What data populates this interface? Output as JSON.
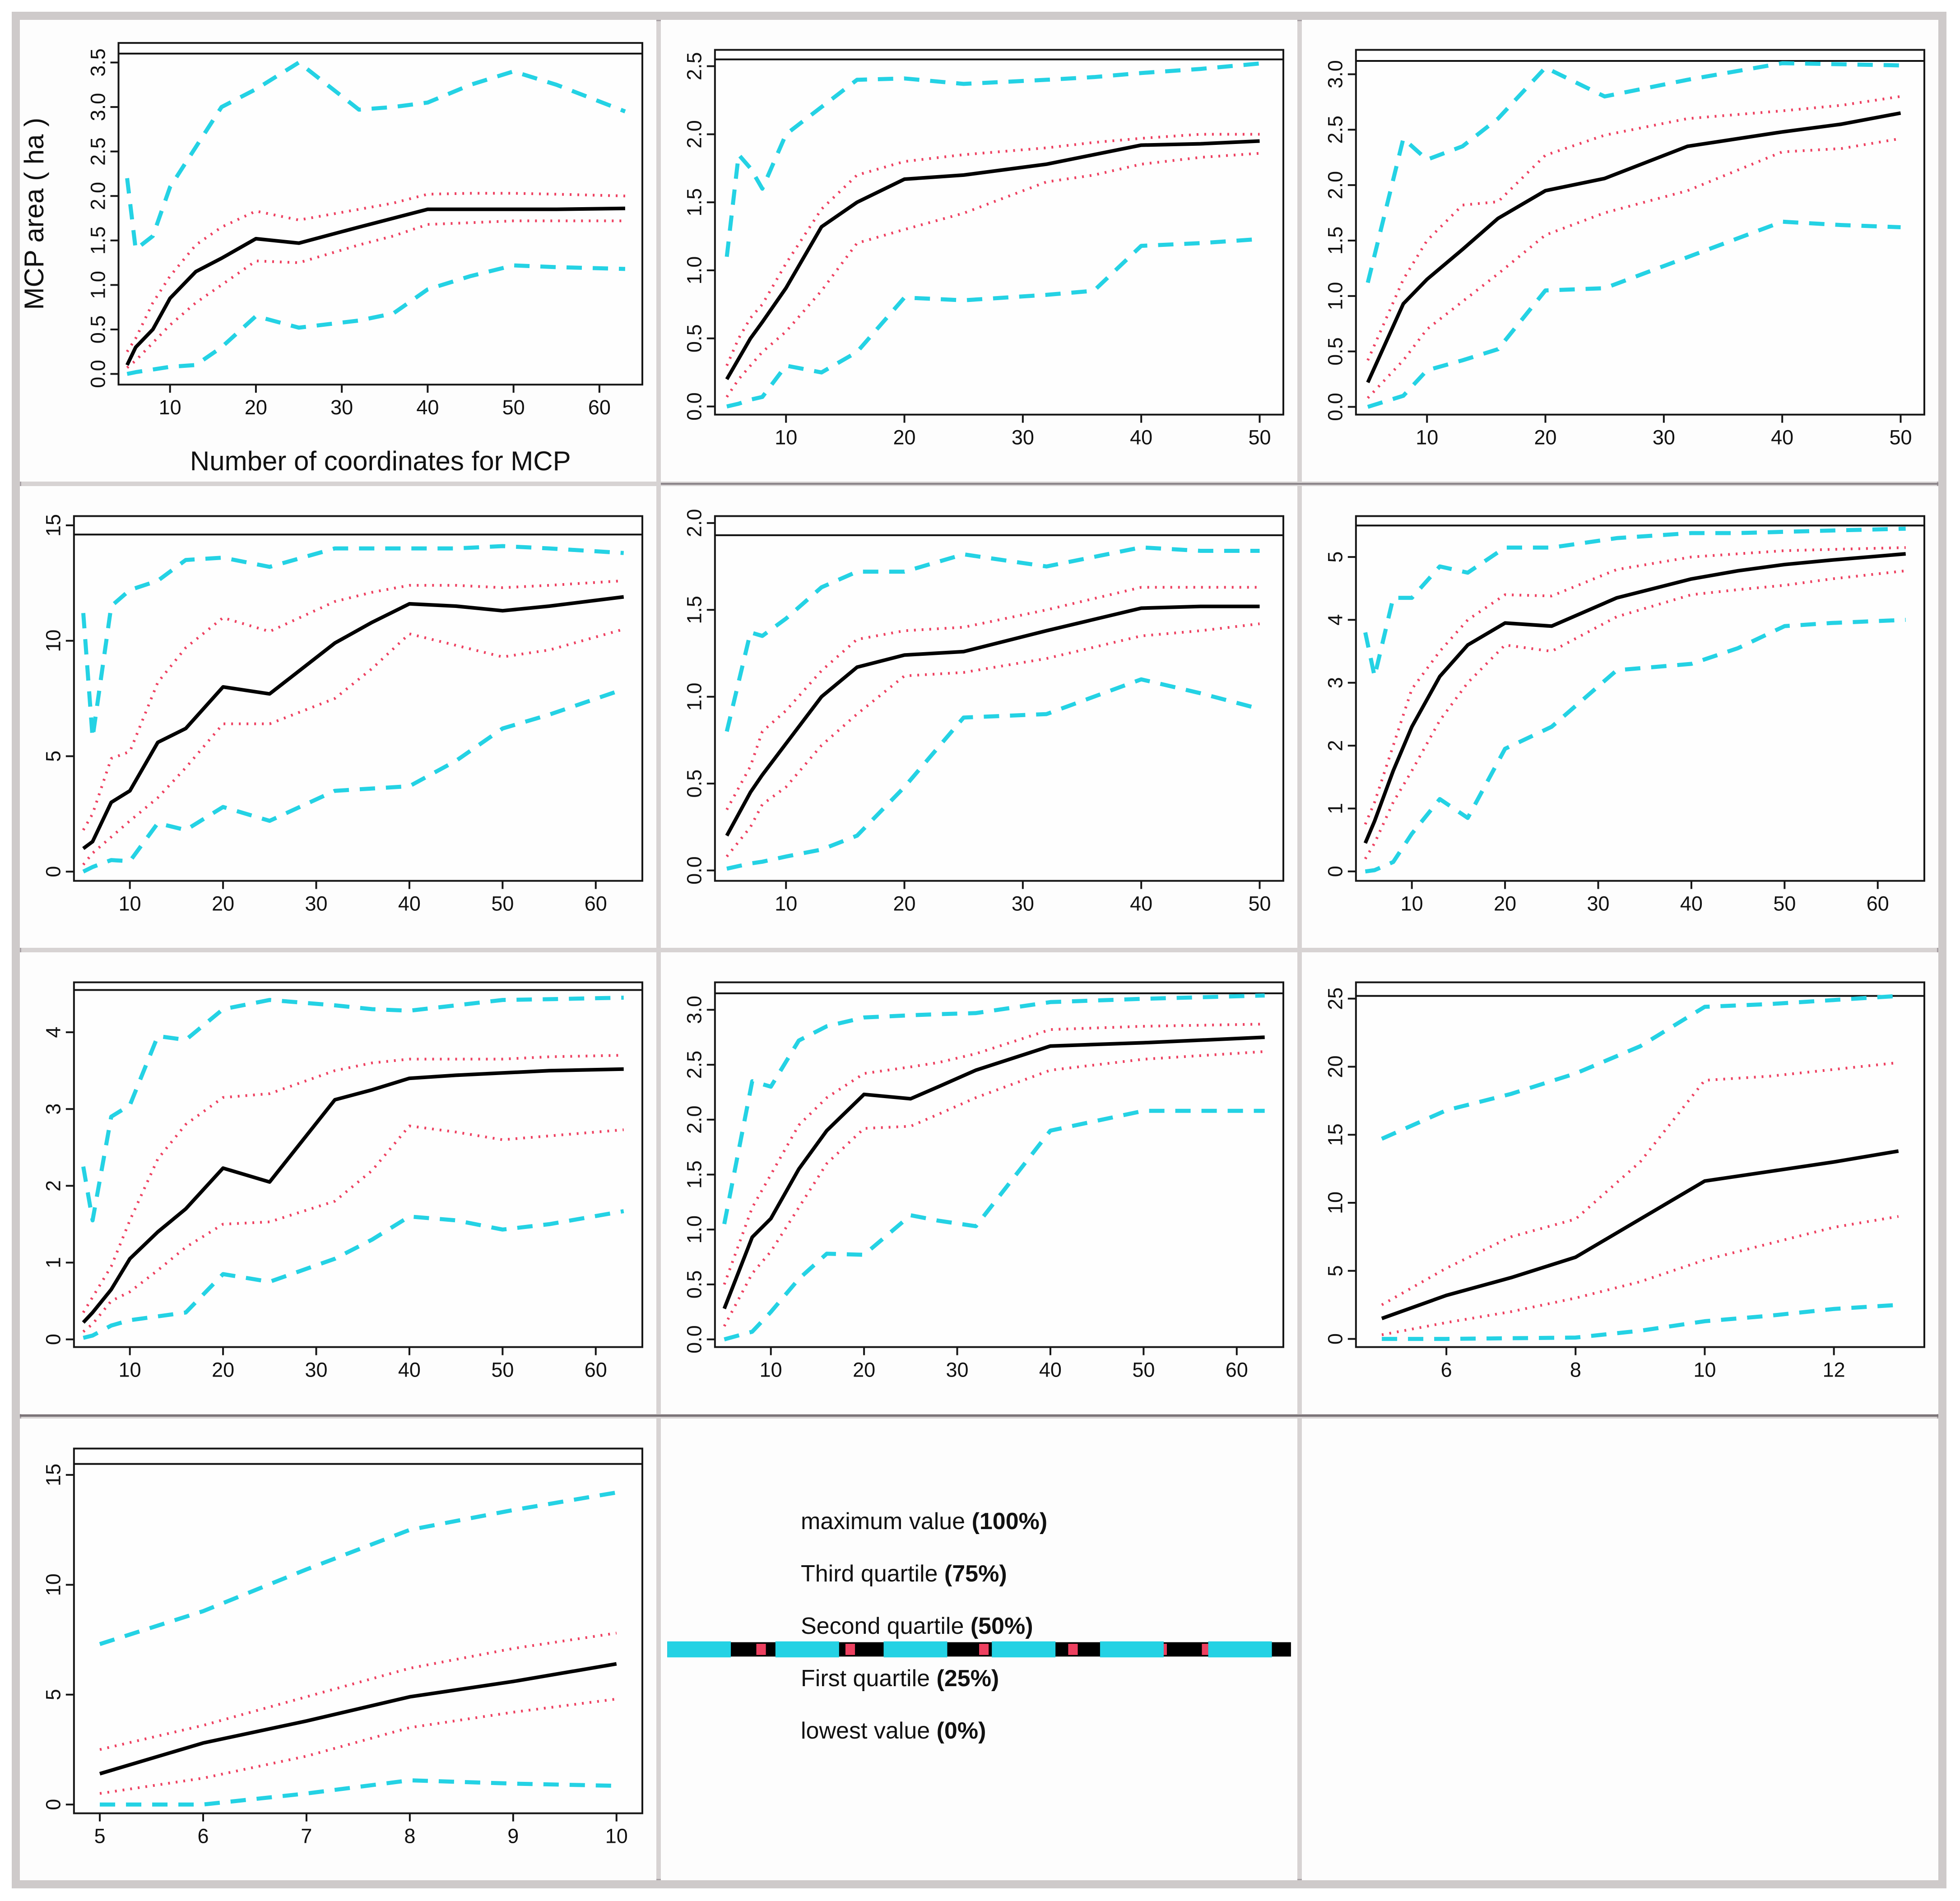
{
  "page": {
    "background": "#ffffff",
    "frame_color": "#cecaca",
    "separator_color": "#d7d3d3",
    "dark_separator_color": "#7b7478"
  },
  "colors": {
    "max": "#24d2e4",
    "q3": "#ee4060",
    "q2": "#000000",
    "q1": "#ee4060",
    "min": "#24d2e4",
    "reference": "#111111",
    "text": "#111111"
  },
  "legend": {
    "items": [
      {
        "key": "max",
        "label": "maximum value",
        "pct": "(100%)"
      },
      {
        "key": "q3",
        "label": "Third quartile",
        "pct": "(75%)"
      },
      {
        "key": "q2",
        "label": "Second quartile",
        "pct": "(50%)"
      },
      {
        "key": "q1",
        "label": "First quartile",
        "pct": "(25%)"
      },
      {
        "key": "min",
        "label": "lowest value",
        "pct": "(0%)"
      }
    ]
  },
  "chart_data": [
    {
      "type": "line",
      "position": "row1-col1",
      "ylabel": "MCP area ( ha )",
      "xlabel": "Number of coordinates for MCP",
      "xlim": [
        4,
        65
      ],
      "ylim": [
        -0.12,
        3.72
      ],
      "hline": 3.6,
      "xticks": [
        10,
        20,
        30,
        40,
        50,
        60
      ],
      "xtick_labels": [
        "10",
        "20",
        "30",
        "40",
        "50",
        "60"
      ],
      "yticks": [
        0.0,
        0.5,
        1.0,
        1.5,
        2.0,
        2.5,
        3.0,
        3.5
      ],
      "ytick_labels": [
        "0.0",
        "0.5",
        "1.0",
        "1.5",
        "2.0",
        "2.5",
        "3.0",
        "3.5"
      ],
      "x": [
        5,
        6,
        8,
        10,
        13,
        16,
        20,
        25,
        32,
        36,
        40,
        45,
        50,
        55,
        63
      ],
      "series": {
        "max": [
          2.2,
          1.4,
          1.55,
          2.1,
          2.55,
          3.0,
          3.2,
          3.5,
          2.97,
          3.0,
          3.05,
          3.25,
          3.4,
          3.25,
          2.95
        ],
        "q3": [
          0.25,
          0.4,
          0.8,
          1.1,
          1.45,
          1.65,
          1.83,
          1.73,
          1.85,
          1.92,
          2.02,
          2.03,
          2.03,
          2.02,
          2.0
        ],
        "q2": [
          0.1,
          0.3,
          0.5,
          0.85,
          1.15,
          1.3,
          1.52,
          1.47,
          1.65,
          1.75,
          1.85,
          1.85,
          1.85,
          1.85,
          1.86
        ],
        "q1": [
          0.07,
          0.15,
          0.35,
          0.55,
          0.8,
          1.0,
          1.27,
          1.25,
          1.45,
          1.55,
          1.68,
          1.7,
          1.72,
          1.72,
          1.72
        ],
        "min": [
          0.0,
          0.02,
          0.05,
          0.08,
          0.1,
          0.3,
          0.65,
          0.52,
          0.6,
          0.68,
          0.95,
          1.1,
          1.22,
          1.2,
          1.18
        ]
      }
    },
    {
      "type": "line",
      "position": "row1-col2",
      "xlim": [
        4,
        52
      ],
      "ylim": [
        -0.06,
        2.62
      ],
      "hline": 2.55,
      "xticks": [
        10,
        20,
        30,
        40,
        50
      ],
      "xtick_labels": [
        "10",
        "20",
        "30",
        "40",
        "50"
      ],
      "yticks": [
        0.0,
        0.5,
        1.0,
        1.5,
        2.0,
        2.5
      ],
      "ytick_labels": [
        "0.0",
        "0.5",
        "1.0",
        "1.5",
        "2.0",
        "2.5"
      ],
      "x": [
        5,
        6,
        7,
        8,
        10,
        13,
        16,
        20,
        25,
        32,
        36,
        40,
        45,
        50
      ],
      "series": {
        "max": [
          1.1,
          1.85,
          1.75,
          1.6,
          2.0,
          2.2,
          2.4,
          2.41,
          2.37,
          2.4,
          2.42,
          2.45,
          2.48,
          2.52
        ],
        "q3": [
          0.3,
          0.5,
          0.65,
          0.75,
          1.05,
          1.45,
          1.7,
          1.8,
          1.85,
          1.9,
          1.94,
          1.97,
          2.0,
          2.0
        ],
        "q2": [
          0.2,
          0.35,
          0.5,
          0.62,
          0.87,
          1.32,
          1.5,
          1.67,
          1.7,
          1.78,
          1.85,
          1.92,
          1.93,
          1.95
        ],
        "q1": [
          0.07,
          0.2,
          0.3,
          0.4,
          0.55,
          0.85,
          1.2,
          1.3,
          1.42,
          1.65,
          1.7,
          1.78,
          1.83,
          1.86
        ],
        "min": [
          0.0,
          0.02,
          0.05,
          0.07,
          0.3,
          0.25,
          0.4,
          0.8,
          0.78,
          0.82,
          0.85,
          1.18,
          1.2,
          1.23
        ]
      }
    },
    {
      "type": "line",
      "position": "row1-col3",
      "xlim": [
        4,
        52
      ],
      "ylim": [
        -0.07,
        3.22
      ],
      "hline": 3.12,
      "xticks": [
        10,
        20,
        30,
        40,
        50
      ],
      "xtick_labels": [
        "10",
        "20",
        "30",
        "40",
        "50"
      ],
      "yticks": [
        0.0,
        0.5,
        1.0,
        1.5,
        2.0,
        2.5,
        3.0
      ],
      "ytick_labels": [
        "0.0",
        "0.5",
        "1.0",
        "1.5",
        "2.0",
        "2.5",
        "3.0"
      ],
      "x": [
        5,
        8,
        10,
        13,
        16,
        20,
        25,
        32,
        40,
        45,
        50
      ],
      "series": {
        "max": [
          1.12,
          2.42,
          2.23,
          2.35,
          2.6,
          3.06,
          2.8,
          2.95,
          3.1,
          3.09,
          3.08
        ],
        "q3": [
          0.42,
          1.15,
          1.5,
          1.82,
          1.85,
          2.27,
          2.45,
          2.6,
          2.67,
          2.72,
          2.8
        ],
        "q2": [
          0.22,
          0.93,
          1.15,
          1.42,
          1.7,
          1.95,
          2.06,
          2.35,
          2.48,
          2.55,
          2.65
        ],
        "q1": [
          0.08,
          0.42,
          0.7,
          0.95,
          1.2,
          1.55,
          1.75,
          1.95,
          2.3,
          2.33,
          2.42
        ],
        "min": [
          0.0,
          0.1,
          0.33,
          0.42,
          0.52,
          1.05,
          1.07,
          1.35,
          1.67,
          1.64,
          1.62
        ]
      }
    },
    {
      "type": "line",
      "position": "row2-col1",
      "xlim": [
        4,
        65
      ],
      "ylim": [
        -0.4,
        15.4
      ],
      "hline": 14.6,
      "xticks": [
        10,
        20,
        30,
        40,
        50,
        60
      ],
      "xtick_labels": [
        "10",
        "20",
        "30",
        "40",
        "50",
        "60"
      ],
      "yticks": [
        0,
        5,
        10,
        15
      ],
      "ytick_labels": [
        "0",
        "5",
        "10",
        "15"
      ],
      "x": [
        5,
        6,
        8,
        10,
        13,
        16,
        20,
        25,
        32,
        36,
        40,
        45,
        50,
        55,
        63
      ],
      "series": {
        "max": [
          11.2,
          5.8,
          11.5,
          12.2,
          12.6,
          13.5,
          13.6,
          13.2,
          14.0,
          14.0,
          14.0,
          14.0,
          14.1,
          14.0,
          13.8
        ],
        "q3": [
          1.8,
          2.5,
          4.9,
          5.2,
          8.2,
          9.7,
          11.0,
          10.4,
          11.7,
          12.1,
          12.4,
          12.4,
          12.3,
          12.4,
          12.6
        ],
        "q2": [
          1.0,
          1.3,
          3.0,
          3.5,
          5.6,
          6.2,
          8.0,
          7.7,
          9.9,
          10.8,
          11.6,
          11.5,
          11.3,
          11.5,
          11.9
        ],
        "q1": [
          0.3,
          0.8,
          1.5,
          2.2,
          3.2,
          4.5,
          6.4,
          6.4,
          7.5,
          8.8,
          10.3,
          9.8,
          9.3,
          9.6,
          10.5
        ],
        "min": [
          0.0,
          0.2,
          0.5,
          0.45,
          2.1,
          1.8,
          2.8,
          2.2,
          3.5,
          3.6,
          3.7,
          4.8,
          6.2,
          6.8,
          7.9
        ]
      }
    },
    {
      "type": "line",
      "position": "row2-col2",
      "xlim": [
        4,
        52
      ],
      "ylim": [
        -0.06,
        2.04
      ],
      "hline": 1.93,
      "xticks": [
        10,
        20,
        30,
        40,
        50
      ],
      "xtick_labels": [
        "10",
        "20",
        "30",
        "40",
        "50"
      ],
      "yticks": [
        0.0,
        0.5,
        1.0,
        1.5,
        2.0
      ],
      "ytick_labels": [
        "0.0",
        "0.5",
        "1.0",
        "1.5",
        "2.0"
      ],
      "x": [
        5,
        7,
        8,
        10,
        13,
        16,
        20,
        25,
        32,
        40,
        45,
        50
      ],
      "series": {
        "max": [
          0.8,
          1.37,
          1.35,
          1.45,
          1.63,
          1.72,
          1.72,
          1.82,
          1.75,
          1.86,
          1.84,
          1.84
        ],
        "q3": [
          0.35,
          0.6,
          0.8,
          0.92,
          1.15,
          1.33,
          1.38,
          1.4,
          1.5,
          1.63,
          1.63,
          1.63
        ],
        "q2": [
          0.2,
          0.45,
          0.55,
          0.73,
          1.0,
          1.17,
          1.24,
          1.26,
          1.38,
          1.51,
          1.52,
          1.52
        ],
        "q1": [
          0.08,
          0.25,
          0.38,
          0.48,
          0.72,
          0.9,
          1.12,
          1.14,
          1.22,
          1.35,
          1.38,
          1.42
        ],
        "min": [
          0.01,
          0.04,
          0.05,
          0.08,
          0.12,
          0.2,
          0.48,
          0.88,
          0.9,
          1.1,
          1.02,
          0.93
        ]
      }
    },
    {
      "type": "line",
      "position": "row2-col3",
      "xlim": [
        4,
        65
      ],
      "ylim": [
        -0.15,
        5.65
      ],
      "hline": 5.5,
      "xticks": [
        10,
        20,
        30,
        40,
        50,
        60
      ],
      "xtick_labels": [
        "10",
        "20",
        "30",
        "40",
        "50",
        "60"
      ],
      "yticks": [
        0,
        1,
        2,
        3,
        4,
        5
      ],
      "ytick_labels": [
        "0",
        "1",
        "2",
        "3",
        "4",
        "5"
      ],
      "x": [
        5,
        6,
        8,
        10,
        13,
        16,
        20,
        25,
        32,
        40,
        45,
        50,
        55,
        63
      ],
      "series": {
        "max": [
          3.8,
          3.1,
          4.35,
          4.35,
          4.85,
          4.75,
          5.15,
          5.15,
          5.3,
          5.38,
          5.38,
          5.4,
          5.42,
          5.45
        ],
        "q3": [
          0.75,
          1.1,
          2.0,
          2.9,
          3.5,
          4.0,
          4.4,
          4.38,
          4.8,
          5.0,
          5.05,
          5.1,
          5.12,
          5.15
        ],
        "q2": [
          0.45,
          0.8,
          1.6,
          2.3,
          3.1,
          3.6,
          3.95,
          3.9,
          4.35,
          4.65,
          4.78,
          4.88,
          4.95,
          5.05
        ],
        "q1": [
          0.2,
          0.45,
          1.1,
          1.6,
          2.4,
          3.0,
          3.6,
          3.5,
          4.05,
          4.4,
          4.48,
          4.55,
          4.65,
          4.78
        ],
        "min": [
          0.0,
          0.02,
          0.15,
          0.6,
          1.15,
          0.85,
          1.95,
          2.3,
          3.2,
          3.3,
          3.55,
          3.9,
          3.95,
          4.0
        ]
      }
    },
    {
      "type": "line",
      "position": "row3-col1",
      "xlim": [
        4,
        65
      ],
      "ylim": [
        -0.1,
        4.65
      ],
      "hline": 4.55,
      "xticks": [
        10,
        20,
        30,
        40,
        50,
        60
      ],
      "xtick_labels": [
        "10",
        "20",
        "30",
        "40",
        "50",
        "60"
      ],
      "yticks": [
        0,
        1,
        2,
        3,
        4
      ],
      "ytick_labels": [
        "0",
        "1",
        "2",
        "3",
        "4"
      ],
      "x": [
        5,
        6,
        8,
        10,
        13,
        16,
        20,
        25,
        32,
        36,
        40,
        45,
        50,
        55,
        63
      ],
      "series": {
        "max": [
          2.25,
          1.55,
          2.9,
          3.05,
          3.95,
          3.9,
          4.3,
          4.42,
          4.35,
          4.3,
          4.28,
          4.35,
          4.42,
          4.43,
          4.45
        ],
        "q3": [
          0.35,
          0.55,
          0.95,
          1.55,
          2.35,
          2.8,
          3.15,
          3.2,
          3.5,
          3.6,
          3.65,
          3.65,
          3.65,
          3.68,
          3.7
        ],
        "q2": [
          0.22,
          0.35,
          0.65,
          1.05,
          1.4,
          1.7,
          2.23,
          2.05,
          3.12,
          3.25,
          3.4,
          3.44,
          3.47,
          3.5,
          3.52
        ],
        "q1": [
          0.1,
          0.2,
          0.5,
          0.62,
          0.9,
          1.2,
          1.5,
          1.53,
          1.8,
          2.2,
          2.78,
          2.7,
          2.6,
          2.65,
          2.73
        ],
        "min": [
          0.02,
          0.05,
          0.18,
          0.25,
          0.3,
          0.35,
          0.85,
          0.75,
          1.05,
          1.3,
          1.6,
          1.55,
          1.43,
          1.5,
          1.67
        ]
      }
    },
    {
      "type": "line",
      "position": "row3-col2",
      "xlim": [
        4,
        65
      ],
      "ylim": [
        -0.07,
        3.25
      ],
      "hline": 3.15,
      "xticks": [
        10,
        20,
        30,
        40,
        50,
        60
      ],
      "xtick_labels": [
        "10",
        "20",
        "30",
        "40",
        "50",
        "60"
      ],
      "yticks": [
        0.0,
        0.5,
        1.0,
        1.5,
        2.0,
        2.5,
        3.0
      ],
      "ytick_labels": [
        "0.0",
        "0.5",
        "1.0",
        "1.5",
        "2.0",
        "2.5",
        "3.0"
      ],
      "x": [
        5,
        8,
        10,
        13,
        16,
        20,
        25,
        28,
        32,
        40,
        50,
        63
      ],
      "series": {
        "max": [
          1.05,
          2.35,
          2.3,
          2.72,
          2.85,
          2.93,
          2.95,
          2.96,
          2.97,
          3.07,
          3.1,
          3.13
        ],
        "q3": [
          0.5,
          1.2,
          1.5,
          1.95,
          2.2,
          2.42,
          2.48,
          2.52,
          2.6,
          2.82,
          2.85,
          2.87
        ],
        "q2": [
          0.28,
          0.93,
          1.1,
          1.55,
          1.9,
          2.23,
          2.19,
          2.3,
          2.45,
          2.67,
          2.7,
          2.75
        ],
        "q1": [
          0.12,
          0.6,
          0.8,
          1.2,
          1.6,
          1.92,
          1.94,
          2.05,
          2.2,
          2.45,
          2.55,
          2.62
        ],
        "min": [
          0.0,
          0.07,
          0.25,
          0.55,
          0.78,
          0.77,
          1.13,
          1.08,
          1.03,
          1.9,
          2.08,
          2.08
        ]
      }
    },
    {
      "type": "line",
      "position": "row3-col3",
      "xlim": [
        4.6,
        13.4
      ],
      "ylim": [
        -0.6,
        26.2
      ],
      "hline": 25.2,
      "xticks": [
        6,
        8,
        10,
        12
      ],
      "xtick_labels": [
        "6",
        "8",
        "10",
        "12"
      ],
      "yticks": [
        0,
        5,
        10,
        15,
        20,
        25
      ],
      "ytick_labels": [
        "0",
        "5",
        "10",
        "15",
        "20",
        "25"
      ],
      "x": [
        5,
        6,
        7,
        8,
        9,
        10,
        11,
        12,
        13
      ],
      "series": {
        "max": [
          14.7,
          16.8,
          18.0,
          19.5,
          21.5,
          24.4,
          24.6,
          24.9,
          25.2
        ],
        "q3": [
          2.5,
          5.2,
          7.5,
          8.8,
          13.0,
          19.0,
          19.3,
          19.8,
          20.3
        ],
        "q2": [
          1.5,
          3.2,
          4.5,
          6.0,
          8.8,
          11.6,
          12.3,
          13.0,
          13.8
        ],
        "q1": [
          0.3,
          1.2,
          2.0,
          3.0,
          4.2,
          5.8,
          7.0,
          8.2,
          9.0
        ],
        "min": [
          0.0,
          0.0,
          0.05,
          0.1,
          0.6,
          1.3,
          1.7,
          2.2,
          2.5
        ]
      }
    },
    {
      "type": "line",
      "position": "row4-col1",
      "xlim": [
        4.75,
        10.25
      ],
      "ylim": [
        -0.4,
        16.2
      ],
      "hline": 15.5,
      "xticks": [
        5,
        6,
        7,
        8,
        9,
        10
      ],
      "xtick_labels": [
        "5",
        "6",
        "7",
        "8",
        "9",
        "10"
      ],
      "yticks": [
        0,
        5,
        10,
        15
      ],
      "ytick_labels": [
        "0",
        "5",
        "10",
        "15"
      ],
      "x": [
        5,
        6,
        7,
        8,
        9,
        10
      ],
      "series": {
        "max": [
          7.3,
          8.8,
          10.7,
          12.5,
          13.4,
          14.2
        ],
        "q3": [
          2.5,
          3.6,
          4.9,
          6.2,
          7.1,
          7.8
        ],
        "q2": [
          1.4,
          2.8,
          3.8,
          4.9,
          5.6,
          6.4
        ],
        "q1": [
          0.5,
          1.2,
          2.2,
          3.5,
          4.2,
          4.8
        ],
        "min": [
          0.0,
          0.0,
          0.5,
          1.1,
          0.95,
          0.85
        ]
      }
    }
  ]
}
